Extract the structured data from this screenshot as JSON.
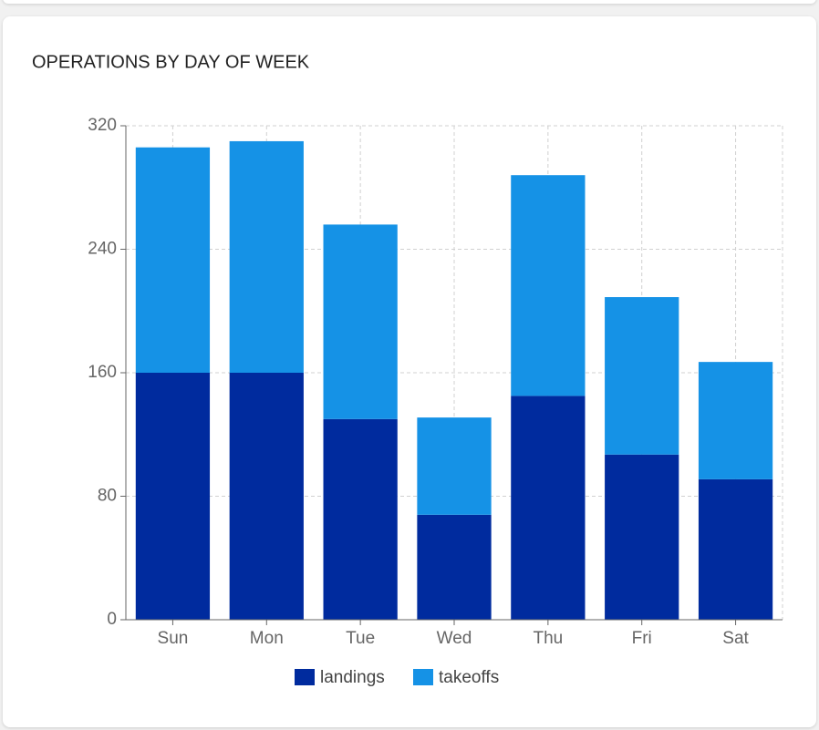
{
  "chart_data": {
    "type": "stacked_bar",
    "title": "OPERATIONS BY DAY OF WEEK",
    "categories": [
      "Sun",
      "Mon",
      "Tue",
      "Wed",
      "Thu",
      "Fri",
      "Sat"
    ],
    "series": [
      {
        "name": "landings",
        "color": "#002b9e",
        "values": [
          160,
          160,
          130,
          68,
          145,
          107,
          91
        ]
      },
      {
        "name": "takeoffs",
        "color": "#1592e6",
        "values": [
          146,
          150,
          126,
          63,
          143,
          102,
          76
        ]
      }
    ],
    "ylim": [
      0,
      320
    ],
    "yticks": [
      0,
      80,
      160,
      240,
      320
    ],
    "grid": true
  }
}
